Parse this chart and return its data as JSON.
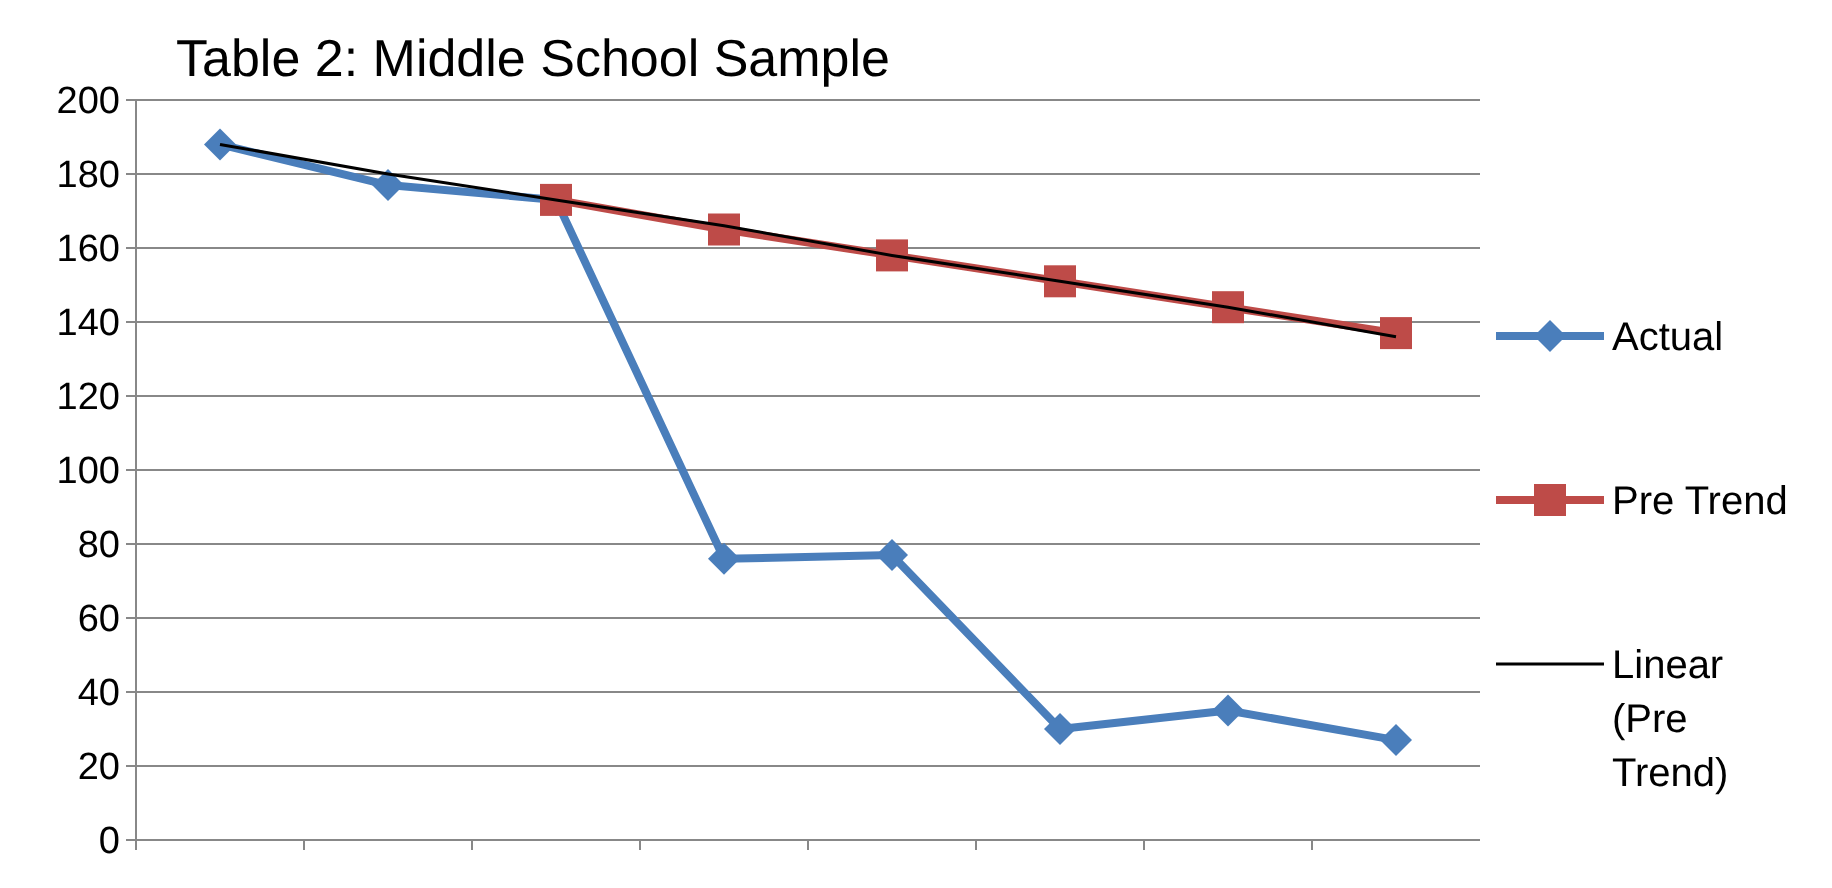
{
  "chart_data": {
    "type": "line",
    "title": "Table 2: Middle School Sample",
    "categories": [
      null,
      null,
      null,
      null,
      null,
      null,
      null,
      null
    ],
    "ylim": [
      0,
      200
    ],
    "yticks": [
      0,
      20,
      40,
      60,
      80,
      100,
      120,
      140,
      160,
      180,
      200
    ],
    "grid": "y",
    "legend": "right",
    "series": [
      {
        "name": "Actual",
        "color": "#4a7ebb",
        "marker": "diamond",
        "values": [
          188,
          177,
          173,
          76,
          77,
          30,
          35,
          27
        ]
      },
      {
        "name": "Pre Trend",
        "color": "#be4b48",
        "marker": "square",
        "values": [
          null,
          null,
          173,
          165,
          158,
          151,
          144,
          137
        ]
      },
      {
        "name": "Linear (Pre Trend)",
        "color": "#000000",
        "marker": "none",
        "values": [
          188,
          180,
          173,
          166,
          158,
          151,
          144,
          136
        ]
      }
    ]
  }
}
